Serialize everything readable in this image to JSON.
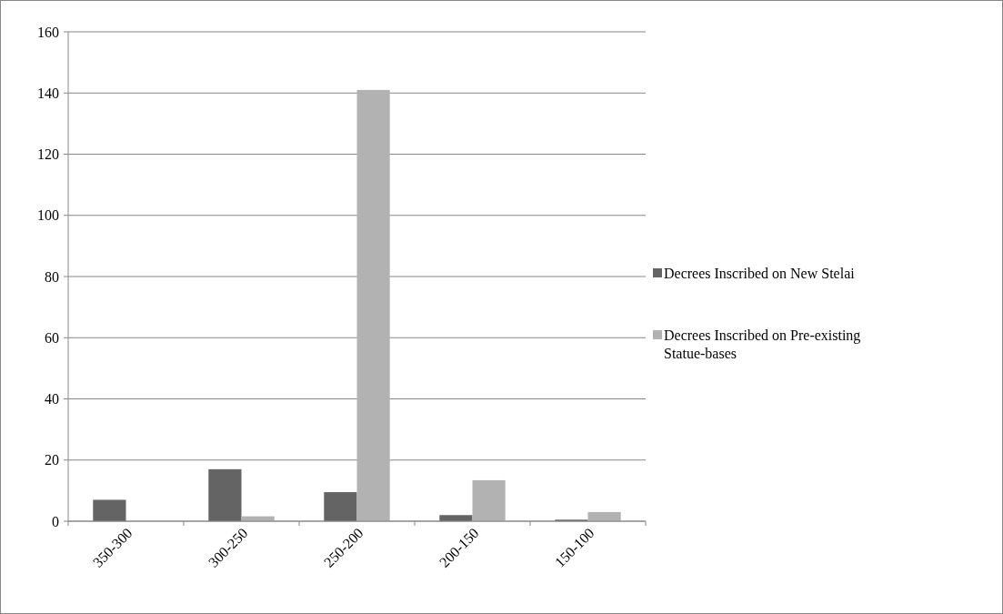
{
  "chart_data": {
    "type": "bar",
    "categories": [
      "350-300",
      "300-250",
      "250-200",
      "200-150",
      "150-100"
    ],
    "series": [
      {
        "name": "Decrees Inscribed on New Stelai",
        "color": "#646464",
        "values": [
          7,
          17,
          9.5,
          2,
          0.5
        ]
      },
      {
        "name": "Decrees Inscribed on Pre-existing Statue-bases",
        "color": "#b2b2b2",
        "values": [
          0,
          1.6,
          141,
          13.4,
          3
        ]
      }
    ],
    "ylim": [
      0,
      160
    ],
    "yticks": [
      0,
      20,
      40,
      60,
      80,
      100,
      120,
      140,
      160
    ],
    "grid": "y",
    "legend": "right"
  }
}
